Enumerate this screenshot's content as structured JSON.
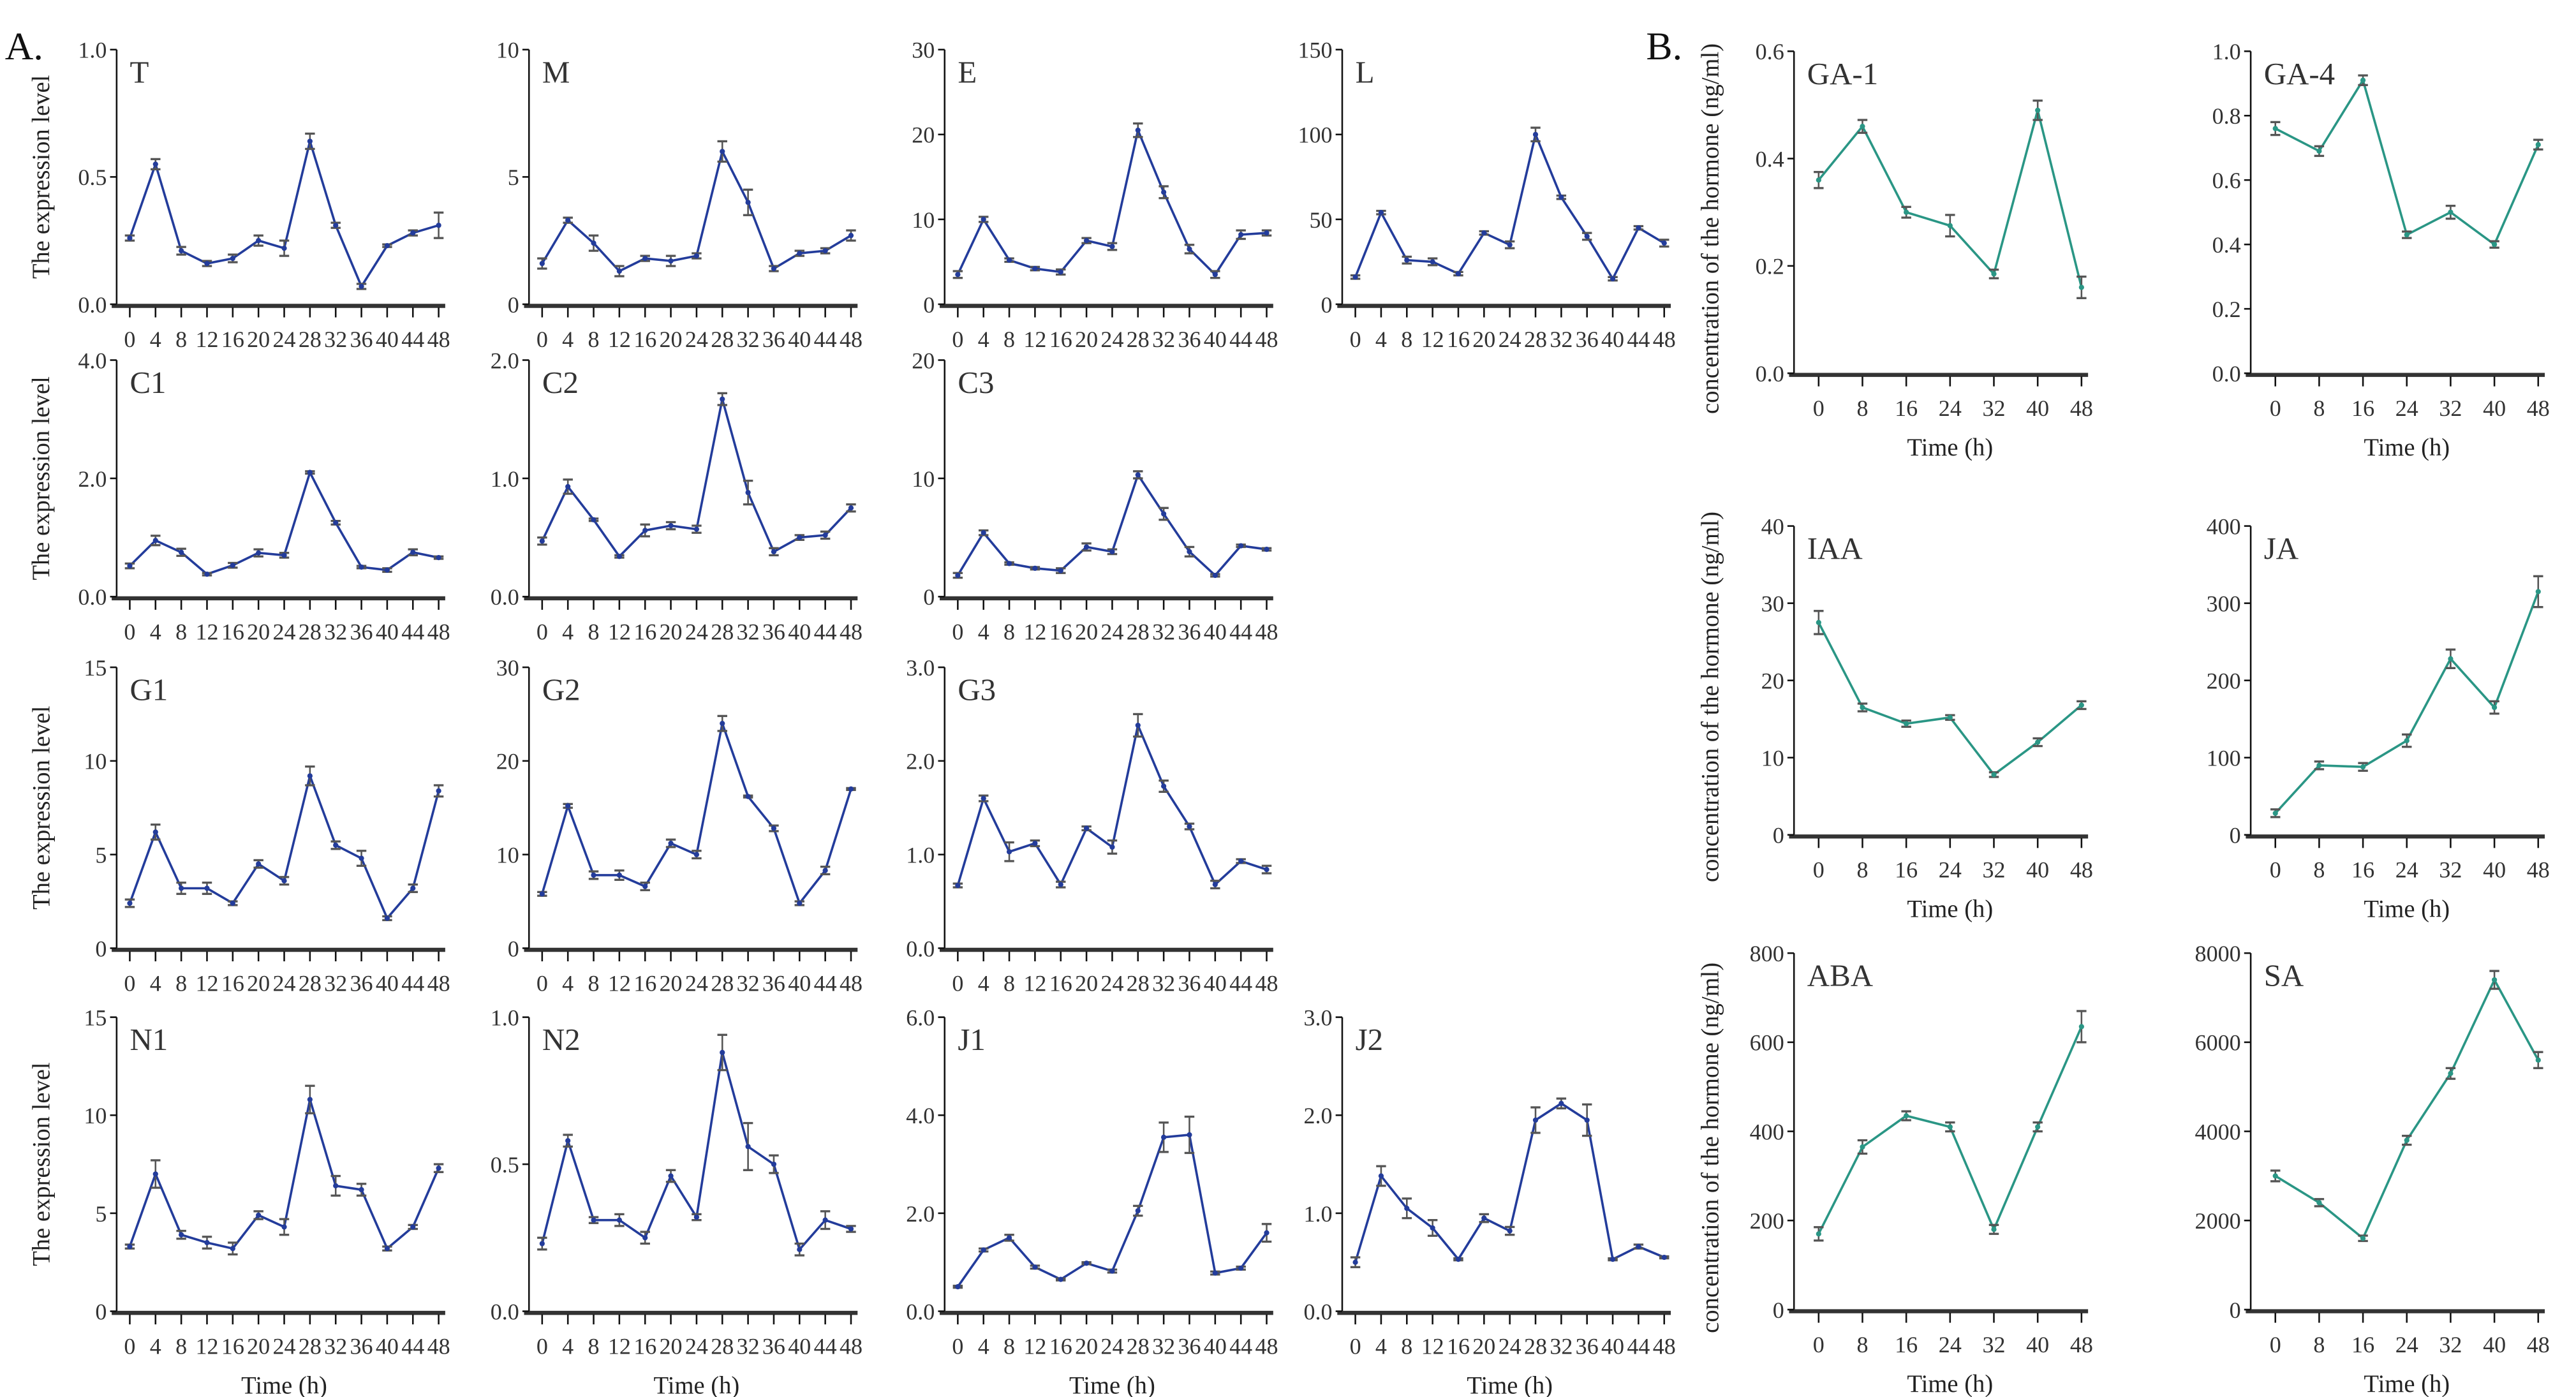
{
  "figure_labels": {
    "a": "A.",
    "b": "B."
  },
  "colors": {
    "panel_a_line": "#233c9b",
    "panel_b_line": "#2a9685",
    "error_bar": "#555555",
    "axis": "#111111"
  },
  "chart_data": {
    "type": "line",
    "panel_A": {
      "ylabel": "The expression level",
      "xlabel": "Time (h)",
      "x": [
        0,
        4,
        8,
        12,
        16,
        20,
        24,
        28,
        32,
        36,
        40,
        44,
        48
      ],
      "xticks": [
        "0",
        "4",
        "8",
        "12",
        "16",
        "20",
        "24",
        "28",
        "32",
        "36",
        "40",
        "44",
        "48"
      ],
      "panels": [
        {
          "title": "T",
          "ylim": [
            0,
            1.0
          ],
          "yticks": [
            "0.0",
            "0.5",
            "1.0"
          ],
          "y": [
            0.26,
            0.55,
            0.21,
            0.16,
            0.18,
            0.25,
            0.22,
            0.64,
            0.31,
            0.07,
            0.23,
            0.28,
            0.31
          ],
          "yerr": [
            0.01,
            0.02,
            0.015,
            0.01,
            0.015,
            0.02,
            0.03,
            0.03,
            0.01,
            0.01,
            0.005,
            0.01,
            0.05
          ]
        },
        {
          "title": "M",
          "ylim": [
            0,
            10
          ],
          "yticks": [
            "0",
            "5",
            "10"
          ],
          "y": [
            1.6,
            3.3,
            2.4,
            1.3,
            1.8,
            1.7,
            1.9,
            6.0,
            4.0,
            1.4,
            2.0,
            2.1,
            2.7
          ],
          "yerr": [
            0.2,
            0.1,
            0.3,
            0.2,
            0.1,
            0.2,
            0.1,
            0.4,
            0.5,
            0.1,
            0.1,
            0.1,
            0.2
          ]
        },
        {
          "title": "E",
          "ylim": [
            0,
            30
          ],
          "yticks": [
            "0",
            "10",
            "20",
            "30"
          ],
          "y": [
            3.5,
            10,
            5.2,
            4.2,
            3.8,
            7.5,
            6.8,
            20.5,
            13.2,
            6.5,
            3.5,
            8.2,
            8.4
          ],
          "yerr": [
            0.4,
            0.3,
            0.2,
            0.2,
            0.3,
            0.3,
            0.4,
            0.8,
            0.7,
            0.5,
            0.4,
            0.5,
            0.3
          ]
        },
        {
          "title": "L",
          "ylim": [
            0,
            150
          ],
          "yticks": [
            "0",
            "50",
            "100",
            "150"
          ],
          "y": [
            16,
            54,
            26,
            25,
            18,
            42,
            35,
            100,
            63,
            40,
            15,
            45,
            36
          ],
          "yerr": [
            1,
            1,
            2,
            2,
            1,
            1,
            2,
            4,
            1,
            2,
            1,
            1,
            2
          ]
        },
        {
          "title": "C1",
          "ylim": [
            0,
            4.0
          ],
          "yticks": [
            "0.0",
            "2.0",
            "4.0"
          ],
          "y": [
            0.52,
            0.95,
            0.75,
            0.38,
            0.53,
            0.74,
            0.7,
            2.1,
            1.25,
            0.5,
            0.45,
            0.75,
            0.66
          ],
          "yerr": [
            0.04,
            0.08,
            0.06,
            0.02,
            0.04,
            0.06,
            0.04,
            0.02,
            0.03,
            0.02,
            0.03,
            0.05,
            0.02
          ]
        },
        {
          "title": "C2",
          "ylim": [
            0,
            2.0
          ],
          "yticks": [
            "0.0",
            "1.0",
            "2.0"
          ],
          "y": [
            0.47,
            0.93,
            0.65,
            0.34,
            0.56,
            0.6,
            0.57,
            1.67,
            0.88,
            0.38,
            0.5,
            0.52,
            0.75
          ],
          "yerr": [
            0.03,
            0.06,
            0.01,
            0.01,
            0.05,
            0.03,
            0.03,
            0.05,
            0.1,
            0.03,
            0.02,
            0.03,
            0.03
          ]
        },
        {
          "title": "C3",
          "ylim": [
            0,
            20
          ],
          "yticks": [
            "0",
            "10",
            "20"
          ],
          "y": [
            1.8,
            5.4,
            2.8,
            2.4,
            2.2,
            4.2,
            3.8,
            10.3,
            7.0,
            3.8,
            1.8,
            4.3,
            4.0
          ],
          "yerr": [
            0.2,
            0.2,
            0.1,
            0.1,
            0.2,
            0.3,
            0.2,
            0.3,
            0.5,
            0.4,
            0.1,
            0.1,
            0.1
          ]
        },
        {
          "title": "G1",
          "ylim": [
            0,
            15
          ],
          "yticks": [
            "0",
            "5",
            "10",
            "15"
          ],
          "y": [
            2.4,
            6.2,
            3.2,
            3.2,
            2.4,
            4.5,
            3.6,
            9.2,
            5.5,
            4.8,
            1.6,
            3.2,
            8.4
          ],
          "yerr": [
            0.2,
            0.4,
            0.3,
            0.3,
            0.1,
            0.2,
            0.2,
            0.5,
            0.2,
            0.4,
            0.1,
            0.2,
            0.3
          ]
        },
        {
          "title": "G2",
          "ylim": [
            0,
            30
          ],
          "yticks": [
            "0",
            "10",
            "20",
            "30"
          ],
          "y": [
            5.8,
            15.2,
            7.8,
            7.8,
            6.6,
            11.2,
            10.0,
            24.0,
            16.2,
            12.8,
            4.8,
            8.3,
            17.0
          ],
          "yerr": [
            0.2,
            0.2,
            0.4,
            0.5,
            0.4,
            0.4,
            0.4,
            0.8,
            0.1,
            0.3,
            0.2,
            0.4,
            0.1
          ]
        },
        {
          "title": "G3",
          "ylim": [
            0,
            3.0
          ],
          "yticks": [
            "0.0",
            "1.0",
            "2.0",
            "3.0"
          ],
          "y": [
            0.67,
            1.6,
            1.03,
            1.12,
            0.68,
            1.28,
            1.08,
            2.38,
            1.73,
            1.3,
            0.68,
            0.93,
            0.84
          ],
          "yerr": [
            0.02,
            0.03,
            0.1,
            0.03,
            0.03,
            0.02,
            0.07,
            0.12,
            0.06,
            0.03,
            0.04,
            0.02,
            0.04
          ]
        },
        {
          "title": "N1",
          "ylim": [
            0,
            15
          ],
          "yticks": [
            "0",
            "5",
            "10",
            "15"
          ],
          "y": [
            3.3,
            7.0,
            3.9,
            3.5,
            3.2,
            4.9,
            4.3,
            10.8,
            6.4,
            6.2,
            3.2,
            4.3,
            7.3
          ],
          "yerr": [
            0.1,
            0.7,
            0.2,
            0.3,
            0.3,
            0.2,
            0.4,
            0.7,
            0.5,
            0.3,
            0.1,
            0.1,
            0.2
          ]
        },
        {
          "title": "N2",
          "ylim": [
            0,
            1.0
          ],
          "yticks": [
            "0.0",
            "0.5",
            "1.0"
          ],
          "y": [
            0.23,
            0.58,
            0.31,
            0.31,
            0.25,
            0.46,
            0.32,
            0.88,
            0.56,
            0.5,
            0.21,
            0.31,
            0.28
          ],
          "yerr": [
            0.02,
            0.02,
            0.01,
            0.02,
            0.02,
            0.02,
            0.01,
            0.06,
            0.08,
            0.03,
            0.02,
            0.03,
            0.01
          ]
        },
        {
          "title": "J1",
          "ylim": [
            0,
            6.0
          ],
          "yticks": [
            "0.0",
            "2.0",
            "4.0",
            "6.0"
          ],
          "y": [
            0.5,
            1.25,
            1.5,
            0.9,
            0.65,
            0.98,
            0.82,
            2.05,
            3.55,
            3.6,
            0.78,
            0.88,
            1.6
          ],
          "yerr": [
            0.02,
            0.03,
            0.06,
            0.03,
            0.02,
            0.02,
            0.03,
            0.1,
            0.3,
            0.37,
            0.03,
            0.03,
            0.18
          ]
        },
        {
          "title": "J2",
          "ylim": [
            0,
            3.0
          ],
          "yticks": [
            "0.0",
            "1.0",
            "2.0",
            "3.0"
          ],
          "y": [
            0.5,
            1.38,
            1.05,
            0.85,
            0.53,
            0.95,
            0.82,
            1.95,
            2.12,
            1.95,
            0.53,
            0.66,
            0.55
          ],
          "yerr": [
            0.05,
            0.1,
            0.1,
            0.08,
            0.01,
            0.04,
            0.04,
            0.13,
            0.05,
            0.16,
            0.01,
            0.02,
            0.01
          ]
        }
      ]
    },
    "panel_B": {
      "ylabel": "concentration of the hormone (ng/ml)",
      "xlabel": "Time (h)",
      "x": [
        0,
        8,
        16,
        24,
        32,
        40,
        48
      ],
      "xticks": [
        "0",
        "8",
        "16",
        "24",
        "32",
        "40",
        "48"
      ],
      "panels": [
        {
          "title": "GA-1",
          "ylim": [
            0,
            0.6
          ],
          "yticks": [
            "0.0",
            "0.2",
            "0.4",
            "0.6"
          ],
          "y": [
            0.36,
            0.46,
            0.3,
            0.275,
            0.185,
            0.49,
            0.16
          ],
          "yerr": [
            0.015,
            0.012,
            0.01,
            0.02,
            0.008,
            0.018,
            0.02
          ]
        },
        {
          "title": "GA-4",
          "ylim": [
            0,
            1.0
          ],
          "yticks": [
            "0.0",
            "0.2",
            "0.4",
            "0.6",
            "0.8",
            "1.0"
          ],
          "y": [
            0.76,
            0.69,
            0.91,
            0.43,
            0.5,
            0.4,
            0.71
          ],
          "yerr": [
            0.02,
            0.015,
            0.015,
            0.01,
            0.02,
            0.01,
            0.015
          ]
        },
        {
          "title": "IAA",
          "ylim": [
            0,
            40
          ],
          "yticks": [
            "0",
            "10",
            "20",
            "30",
            "40"
          ],
          "y": [
            27.5,
            16.5,
            14.4,
            15.2,
            7.8,
            12.0,
            16.8
          ],
          "yerr": [
            1.5,
            0.5,
            0.4,
            0.3,
            0.3,
            0.5,
            0.5
          ]
        },
        {
          "title": "JA",
          "ylim": [
            0,
            400
          ],
          "yticks": [
            "0",
            "100",
            "200",
            "300",
            "400"
          ],
          "y": [
            28,
            90,
            88,
            122,
            228,
            165,
            315
          ],
          "yerr": [
            5,
            5,
            5,
            8,
            12,
            8,
            20
          ]
        },
        {
          "title": "ABA",
          "ylim": [
            0,
            800
          ],
          "yticks": [
            "0",
            "200",
            "400",
            "600",
            "800"
          ],
          "y": [
            170,
            365,
            435,
            410,
            180,
            410,
            635
          ],
          "yerr": [
            15,
            15,
            10,
            10,
            10,
            10,
            35
          ]
        },
        {
          "title": "SA",
          "ylim": [
            0,
            8000
          ],
          "yticks": [
            "0",
            "2000",
            "4000",
            "6000",
            "8000"
          ],
          "y": [
            3000,
            2400,
            1600,
            3800,
            5300,
            7400,
            5600
          ],
          "yerr": [
            120,
            80,
            60,
            100,
            120,
            200,
            180
          ]
        }
      ]
    }
  }
}
